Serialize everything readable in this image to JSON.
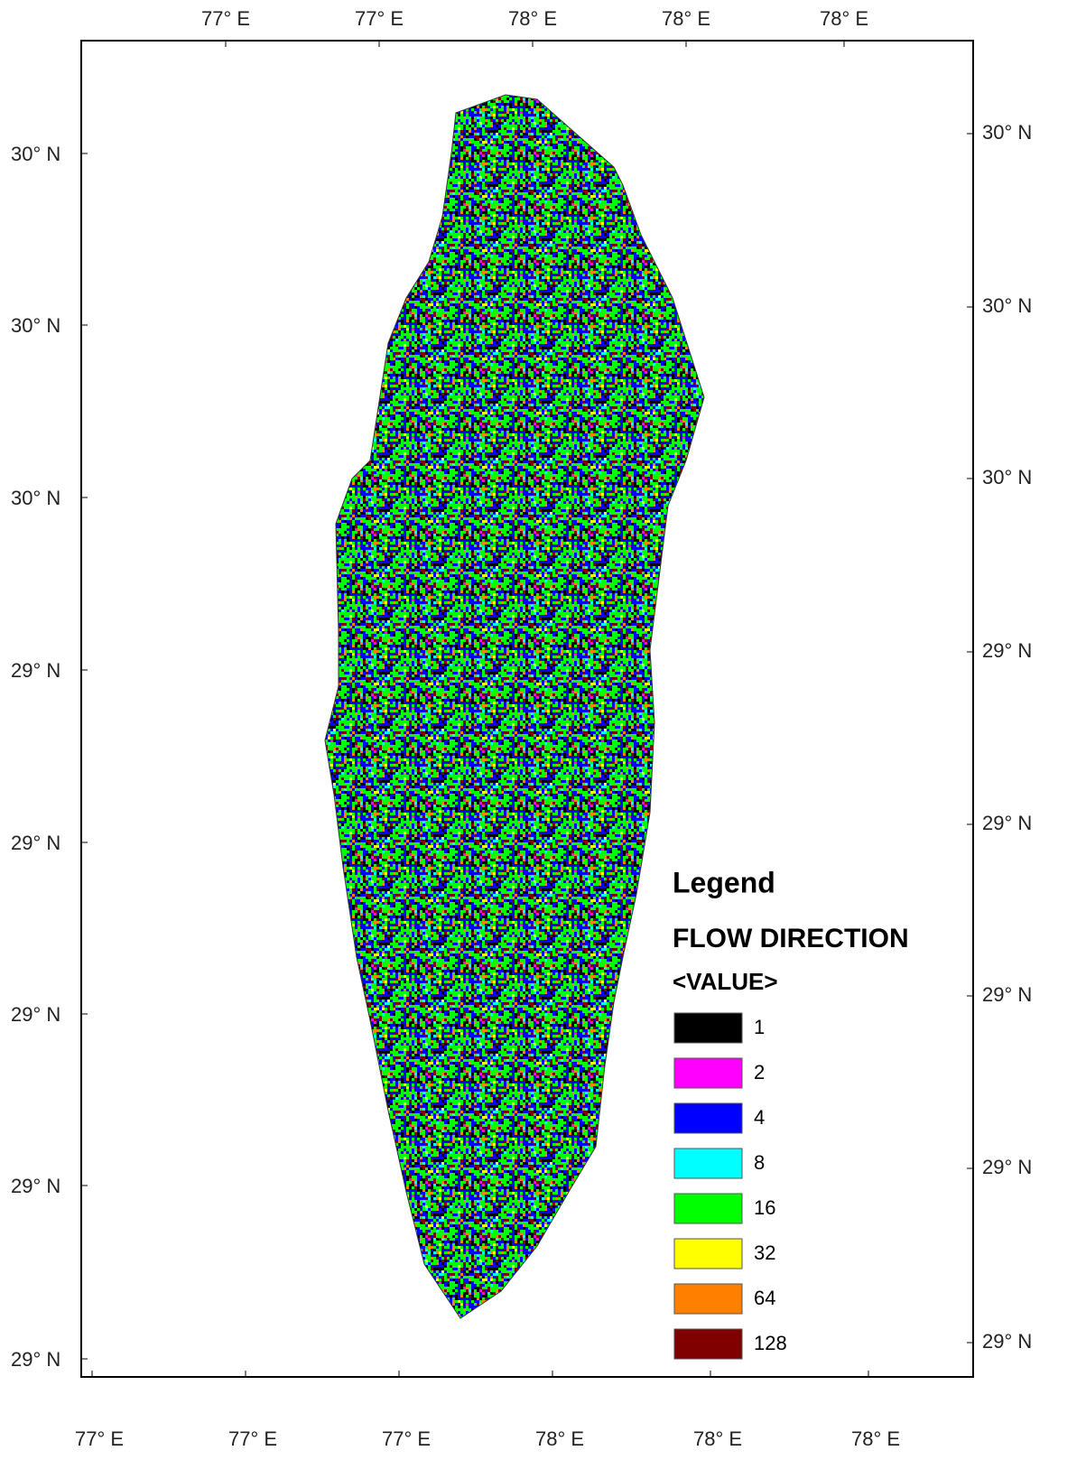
{
  "map": {
    "top_labels": [
      "77° E",
      "77° E",
      "78° E",
      "78° E",
      "78° E"
    ],
    "bottom_labels": [
      "77° E",
      "77° E",
      "77° E",
      "78° E",
      "78° E",
      "78° E"
    ],
    "left_labels": [
      "30° N",
      "30° N",
      "30° N",
      "29° N",
      "29° N",
      "29° N",
      "29° N",
      "29° N"
    ],
    "right_labels": [
      "30° N",
      "30° N",
      "30° N",
      "29° N",
      "29° N",
      "29° N",
      "29° N",
      "29° N"
    ],
    "legend": {
      "title": "Legend",
      "heading": "FLOW DIRECTION",
      "field": "<VALUE>",
      "items": [
        {
          "label": "1",
          "color": "#000000"
        },
        {
          "label": "2",
          "color": "#ff00ff"
        },
        {
          "label": "4",
          "color": "#0000ff"
        },
        {
          "label": "8",
          "color": "#00ffff"
        },
        {
          "label": "16",
          "color": "#00ff00"
        },
        {
          "label": "32",
          "color": "#ffff00"
        },
        {
          "label": "64",
          "color": "#ff8000"
        },
        {
          "label": "128",
          "color": "#800000"
        }
      ]
    }
  }
}
